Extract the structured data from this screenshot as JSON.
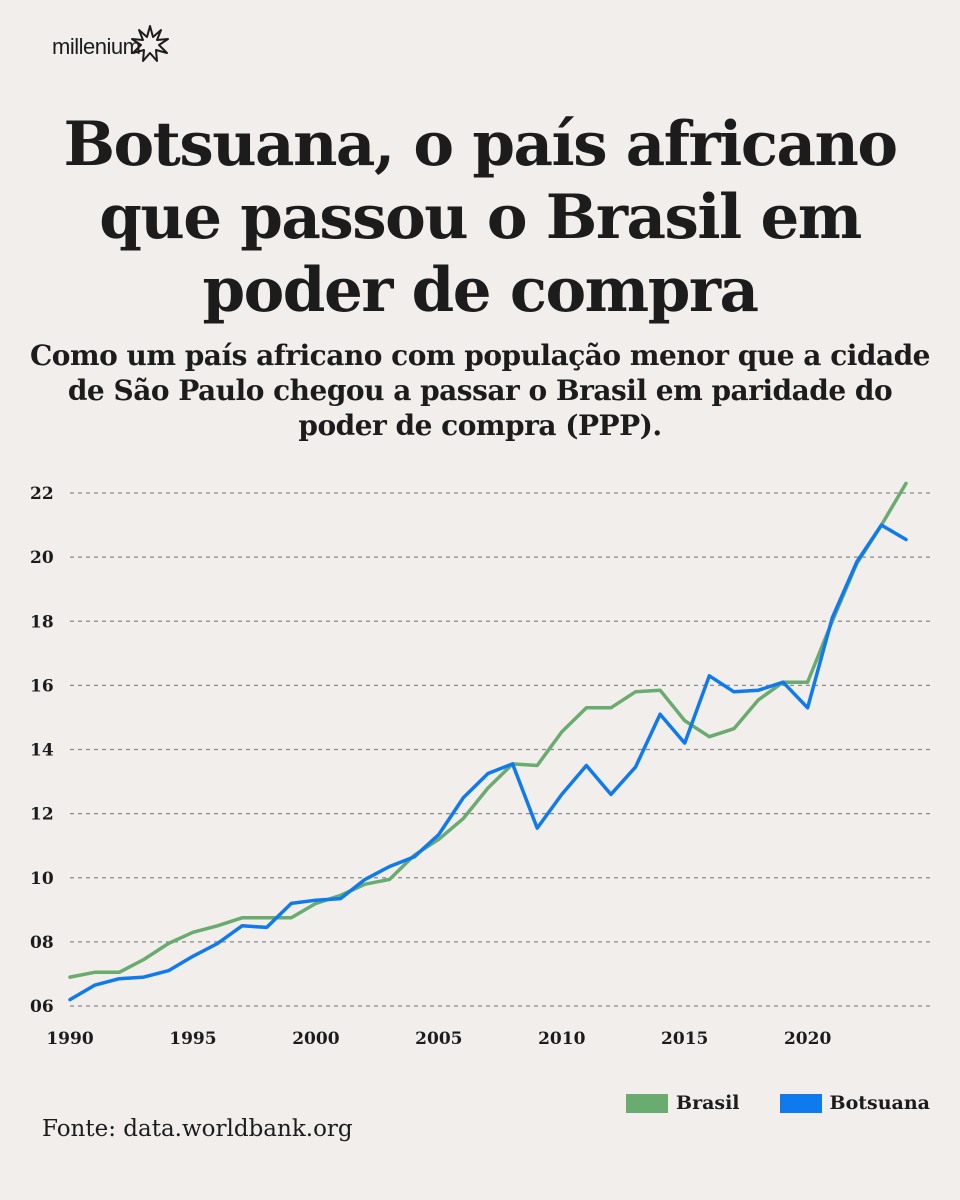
{
  "brand": {
    "name": "millenium",
    "logo_icon": "starburst-icon"
  },
  "title": "Botsuana, o país africano que passou o Brasil em poder de compra",
  "subtitle": "Como um país africano com população menor que a cidade de São Paulo chegou a passar o Brasil em paridade do poder de compra (PPP).",
  "source": "Fonte: data.worldbank.org",
  "chart_data": {
    "type": "line",
    "title": "",
    "xlabel": "",
    "ylabel": "",
    "ylim": [
      6,
      22
    ],
    "xlim": [
      1990,
      2024
    ],
    "grid": "horizontal-dashed",
    "legend_position": "bottom-right",
    "y_ticks": [
      "06",
      "08",
      "10",
      "12",
      "14",
      "16",
      "18",
      "20",
      "22"
    ],
    "x_ticks": [
      "1990",
      "1995",
      "2000",
      "2005",
      "2010",
      "2015",
      "2020"
    ],
    "x": [
      1990,
      1991,
      1992,
      1993,
      1994,
      1995,
      1996,
      1997,
      1998,
      1999,
      2000,
      2001,
      2002,
      2003,
      2004,
      2005,
      2006,
      2007,
      2008,
      2009,
      2010,
      2011,
      2012,
      2013,
      2014,
      2015,
      2016,
      2017,
      2018,
      2019,
      2020,
      2021,
      2022,
      2023,
      2024
    ],
    "series": [
      {
        "name": "Brasil",
        "color": "#6aab6f",
        "values": [
          6.9,
          7.05,
          7.05,
          7.45,
          7.95,
          8.3,
          8.5,
          8.75,
          8.75,
          8.75,
          9.2,
          9.45,
          9.8,
          9.95,
          10.7,
          11.2,
          11.85,
          12.8,
          13.55,
          13.5,
          14.55,
          15.3,
          15.3,
          15.8,
          15.85,
          14.9,
          14.4,
          14.65,
          15.55,
          16.1,
          16.1,
          18.0,
          19.8,
          21.0,
          22.3
        ]
      },
      {
        "name": "Botsuana",
        "color": "#0f7aed",
        "values": [
          6.2,
          6.65,
          6.85,
          6.9,
          7.1,
          7.55,
          7.95,
          8.5,
          8.45,
          9.2,
          9.3,
          9.35,
          9.95,
          10.35,
          10.65,
          11.35,
          12.5,
          13.25,
          13.55,
          11.55,
          12.6,
          13.5,
          12.6,
          13.45,
          15.1,
          14.2,
          16.3,
          15.8,
          15.85,
          16.1,
          15.3,
          18.1,
          19.85,
          21.0,
          20.55
        ]
      }
    ]
  }
}
